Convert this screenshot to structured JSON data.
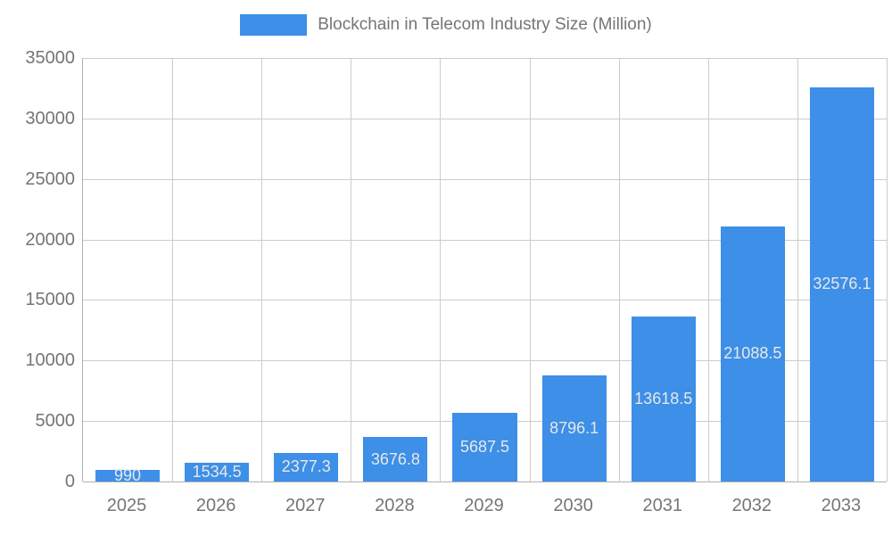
{
  "chart_data": {
    "type": "bar",
    "title": "Blockchain in Telecom Industry Size (Million)",
    "categories": [
      "2025",
      "2026",
      "2027",
      "2028",
      "2029",
      "2030",
      "2031",
      "2032",
      "2033"
    ],
    "values": [
      990,
      1534.5,
      2377.3,
      3676.8,
      5687.5,
      8796.1,
      13618.5,
      21088.5,
      32576.1
    ],
    "ylabel": "",
    "xlabel": "",
    "ylim": [
      0,
      35000
    ],
    "ytick_step": 5000,
    "ytick_labels": [
      "0",
      "5000",
      "10000",
      "15000",
      "20000",
      "25000",
      "30000",
      "35000"
    ],
    "grid": true,
    "legend_position": "top",
    "value_labels_shown": true,
    "colors": {
      "bar": "#3d8fe8",
      "value_label": "#e8e8e8",
      "axis_text": "#757575",
      "title_text": "#757575",
      "grid": "#cccccc",
      "axis_line": "#b0b0b0",
      "background": "#ffffff"
    }
  }
}
